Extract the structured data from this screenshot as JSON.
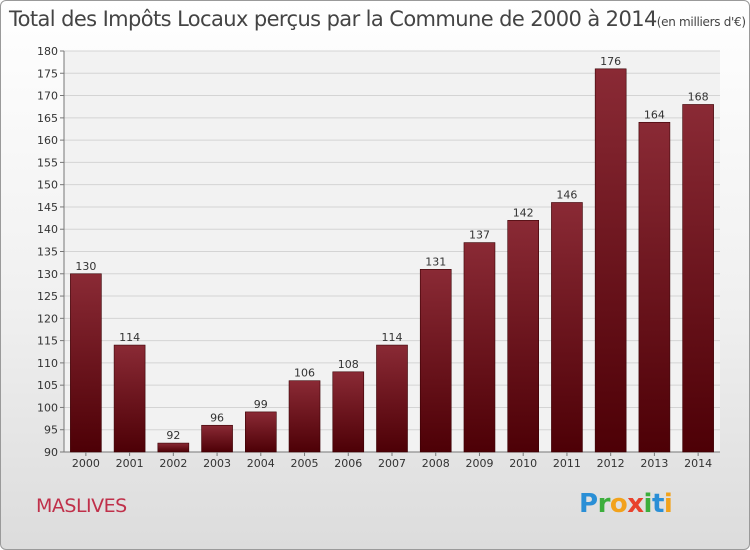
{
  "header": {
    "title": "Total des Impôts Locaux perçus par la Commune de 2000 à 2014",
    "unit": "(en milliers d'€)"
  },
  "commune": "MASLIVES",
  "logo": {
    "letters": [
      "P",
      "r",
      "o",
      "x",
      "i",
      "t",
      "i"
    ]
  },
  "colors": {
    "bar_top": "#8a2a35",
    "bar_bottom": "#4d0006",
    "commune": "#c0304a",
    "title": "#444444"
  },
  "chart_data": {
    "type": "bar",
    "title": "Total des Impôts Locaux perçus par la Commune de 2000 à 2014",
    "xlabel": "",
    "ylabel": "",
    "categories": [
      "2000",
      "2001",
      "2002",
      "2003",
      "2004",
      "2005",
      "2006",
      "2007",
      "2008",
      "2009",
      "2010",
      "2011",
      "2012",
      "2013",
      "2014"
    ],
    "values": [
      130,
      114,
      92,
      96,
      99,
      106,
      108,
      114,
      131,
      137,
      142,
      146,
      176,
      164,
      168
    ],
    "ylim": [
      90,
      180
    ],
    "yticks": [
      90,
      95,
      100,
      105,
      110,
      115,
      120,
      125,
      130,
      135,
      140,
      145,
      150,
      155,
      160,
      165,
      170,
      175,
      180
    ],
    "grid": true,
    "data_labels": true
  }
}
